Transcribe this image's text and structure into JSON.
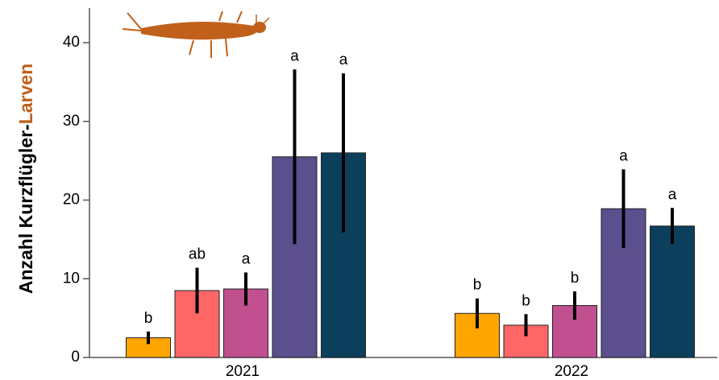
{
  "chart_data": {
    "type": "bar",
    "ylabel": [
      "Anzahl Kurzflügler-",
      "Larven"
    ],
    "categories": [
      "2021",
      "2022"
    ],
    "series": [
      {
        "color": "#FFA500",
        "values": [
          2.5,
          5.6
        ],
        "errors": [
          0.8,
          1.9
        ],
        "labels": [
          "b",
          "b"
        ]
      },
      {
        "color": "#FF6666",
        "values": [
          8.5,
          4.1
        ],
        "errors": [
          2.9,
          1.4
        ],
        "labels": [
          "ab",
          "b"
        ]
      },
      {
        "color": "#C0508F",
        "values": [
          8.7,
          6.6
        ],
        "errors": [
          2.1,
          1.8
        ],
        "labels": [
          "a",
          "b"
        ]
      },
      {
        "color": "#5B4F8E",
        "values": [
          25.5,
          18.9
        ],
        "errors": [
          11.1,
          5.0
        ],
        "labels": [
          "a",
          "a"
        ]
      },
      {
        "color": "#0B3F5C",
        "values": [
          26.0,
          16.7
        ],
        "errors": [
          10.1,
          2.3
        ],
        "labels": [
          "a",
          "a"
        ]
      }
    ],
    "ylim": [
      0,
      44.4
    ],
    "yticks": [
      0,
      10,
      20,
      30,
      40
    ]
  }
}
